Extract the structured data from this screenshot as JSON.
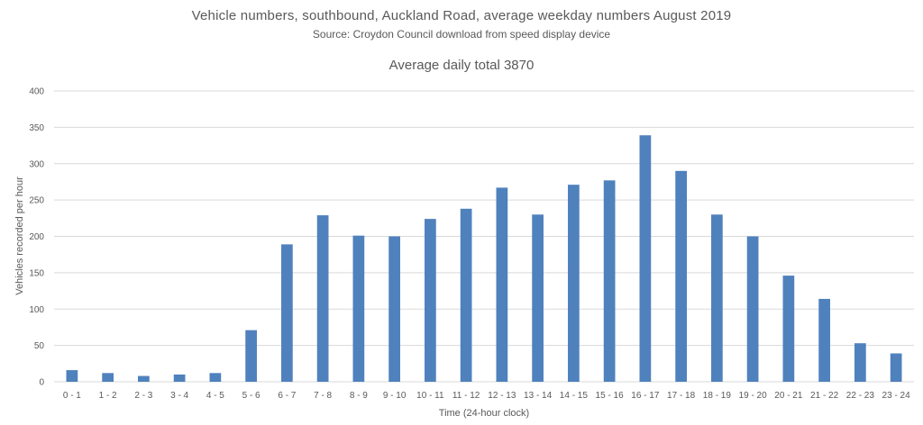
{
  "chart_data": {
    "type": "bar",
    "title": "Vehicle numbers, southbound, Auckland Road, average weekday numbers August 2019",
    "subtitle": "Source: Croydon Council download from speed display device",
    "annotation": "Average daily total 3870",
    "xlabel": "Time (24-hour clock)",
    "ylabel": "Vehicles recorded per hour",
    "ylim": [
      0,
      400
    ],
    "yticks": [
      0,
      50,
      100,
      150,
      200,
      250,
      300,
      350,
      400
    ],
    "grid": true,
    "bar_color": "#4f81bd",
    "grid_color": "#d9d9d9",
    "categories": [
      "0 - 1",
      "1 - 2",
      "2 - 3",
      "3 - 4",
      "4 - 5",
      "5 - 6",
      "6 - 7",
      "7 - 8",
      "8 - 9",
      "9 - 10",
      "10 - 11",
      "11 - 12",
      "12 - 13",
      "13 - 14",
      "14 - 15",
      "15 - 16",
      "16 - 17",
      "17 - 18",
      "18 - 19",
      "19 - 20",
      "20 - 21",
      "21 - 22",
      "22 - 23",
      "23 - 24"
    ],
    "values": [
      16,
      12,
      8,
      10,
      12,
      71,
      189,
      229,
      201,
      200,
      224,
      238,
      267,
      230,
      271,
      277,
      339,
      290,
      230,
      200,
      146,
      114,
      53,
      39
    ]
  }
}
